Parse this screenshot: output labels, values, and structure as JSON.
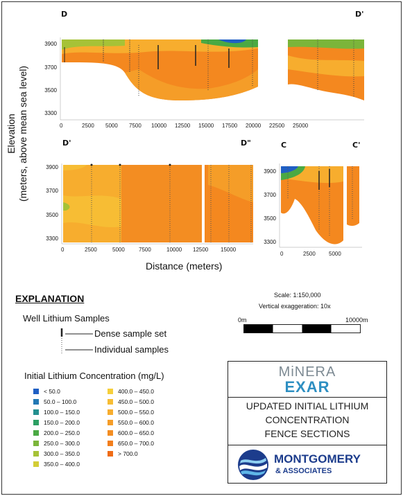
{
  "sections": {
    "top": {
      "left": "D",
      "right": "D'"
    },
    "bottom_left": {
      "left": "D'",
      "right": "D\""
    },
    "bottom_right": {
      "left": "C",
      "right": "C'"
    }
  },
  "y_axis_title": "Elevation\n(meters, above mean sea level)",
  "y_ticks": [
    "3900",
    "3700",
    "3500",
    "3300"
  ],
  "x_title": "Distance (meters)",
  "top_x_ticks": [
    "0",
    "2500",
    "5000",
    "7500",
    "10000",
    "12500",
    "15000",
    "17500",
    "20000",
    "22500",
    "25000"
  ],
  "bl_x_ticks": [
    "0",
    "2500",
    "5000",
    "7500",
    "10000",
    "12500",
    "15000"
  ],
  "br_x_ticks": [
    "0",
    "2500",
    "5000"
  ],
  "explanation": {
    "title": "EXPLANATION",
    "well_samples_title": "Well Lithium Samples",
    "dense": "Dense sample set",
    "individual": "Individual samples",
    "concentration_title": "Initial Lithium Concentration (mg/L)"
  },
  "legend_left": [
    {
      "label": "< 50.0",
      "color": "#1f5fc4"
    },
    {
      "label": "50.0 – 100.0",
      "color": "#2278b4"
    },
    {
      "label": "100.0 – 150.0",
      "color": "#23908f"
    },
    {
      "label": "150.0 – 200.0",
      "color": "#2c9f63"
    },
    {
      "label": "200.0 – 250.0",
      "color": "#4aa943"
    },
    {
      "label": "250.0 – 300.0",
      "color": "#7bb53a"
    },
    {
      "label": "300.0 – 350.0",
      "color": "#a6c237"
    },
    {
      "label": "350.0 – 400.0",
      "color": "#d3cd36"
    }
  ],
  "legend_right": [
    {
      "label": "400.0 – 450.0",
      "color": "#f6cf3b"
    },
    {
      "label": "450.0 – 500.0",
      "color": "#f7bd34"
    },
    {
      "label": "500.0 – 550.0",
      "color": "#f7ad2e"
    },
    {
      "label": "550.0 – 600.0",
      "color": "#f59d28"
    },
    {
      "label": "600.0 – 650.0",
      "color": "#f38d22"
    },
    {
      "label": "650.0 – 700.0",
      "color": "#f27e1c"
    },
    {
      "label": "> 700.0",
      "color": "#ef6c16"
    }
  ],
  "scale": {
    "line1": "Scale: 1:150,000",
    "line2": "Vertical exaggeration: 10x",
    "left": "0m",
    "right": "10000m"
  },
  "logo_minera": {
    "top": "MiNERA",
    "bottom": "EXAR"
  },
  "report_title": [
    "UPDATED INITIAL LITHIUM",
    "CONCENTRATION",
    "FENCE SECTIONS"
  ],
  "logo_montgomery": {
    "top": "MONTGOMERY",
    "bottom": "& ASSOCIATES"
  }
}
